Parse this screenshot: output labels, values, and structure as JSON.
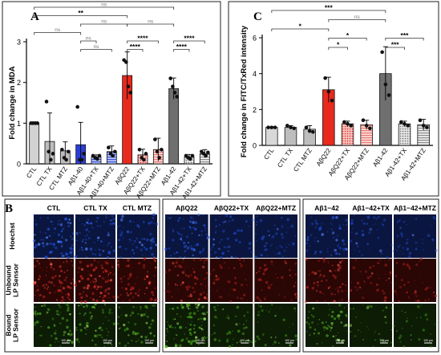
{
  "panels": {
    "A": "A",
    "B": "B",
    "C": "C"
  },
  "chart_data": [
    {
      "type": "bar",
      "panel": "A",
      "ylabel": "Fold change in MDA",
      "ylim": [
        0,
        3
      ],
      "yticks": [
        "0",
        "1",
        "2",
        "3"
      ],
      "categories": [
        "CTL",
        "CTL TX",
        "CTL MTZ",
        "Aβ1-40",
        "Aβ1-40+TX",
        "Aβ1-40+MTZ",
        "AβQ22",
        "AβQ22+TX",
        "AβQ22+MTZ",
        "Aβ1-42",
        "Aβ1-42+TX",
        "Aβ1-42+MTZ"
      ],
      "values": [
        1.0,
        0.55,
        0.32,
        0.47,
        0.17,
        0.3,
        2.17,
        0.22,
        0.35,
        1.85,
        0.17,
        0.25
      ],
      "errors": [
        0.02,
        0.7,
        0.22,
        0.55,
        0.05,
        0.14,
        0.58,
        0.14,
        0.28,
        0.26,
        0.06,
        0.1
      ],
      "colors": [
        "#d2d2d2",
        "#bdbdbd",
        "#bdbdbd",
        "#2b3fd6",
        "#4a5fe0",
        "#6e86e6",
        "#e8291d",
        "#f1a3a0",
        "#f6c0bc",
        "#6f6f6f",
        "#bdbdbd",
        "#d6d6d6"
      ],
      "points": [
        [
          1.0,
          1.0,
          1.0,
          1.0
        ],
        [
          1.53,
          0.3,
          0.1,
          0.25
        ],
        [
          0.35,
          0.15,
          0.1,
          0.3
        ],
        [
          1.4,
          0.1,
          0.1,
          0.25
        ],
        [
          0.2,
          0.15,
          0.12,
          0.2
        ],
        [
          0.4,
          0.25,
          0.2,
          0.3
        ],
        [
          2.55,
          2.5,
          1.9,
          1.75
        ],
        [
          0.35,
          0.15,
          0.1,
          0.25
        ],
        [
          0.6,
          0.3,
          0.15,
          0.35
        ],
        [
          2.1,
          1.9,
          1.75,
          1.65
        ],
        [
          0.2,
          0.15,
          0.12,
          0.2
        ],
        [
          0.3,
          0.25,
          0.2,
          0.28
        ]
      ],
      "significance": [
        {
          "from": 0,
          "to": 9,
          "label": "ns",
          "level": 1
        },
        {
          "from": 0,
          "to": 6,
          "label": "**",
          "level": 2
        },
        {
          "from": 3,
          "to": 6,
          "label": "ns",
          "level": 3
        },
        {
          "from": 6,
          "to": 9,
          "label": "ns",
          "level": 3
        },
        {
          "from": 0,
          "to": 3,
          "label": "ns",
          "level": 4
        },
        {
          "from": 3,
          "to": 4,
          "label": "ns",
          "level": 5
        },
        {
          "from": 3,
          "to": 5,
          "label": "ns",
          "level": 6
        },
        {
          "from": 6,
          "to": 8,
          "label": "****",
          "level": 5
        },
        {
          "from": 6,
          "to": 7,
          "label": "****",
          "level": 6
        },
        {
          "from": 9,
          "to": 11,
          "label": "****",
          "level": 5
        },
        {
          "from": 9,
          "to": 10,
          "label": "****",
          "level": 6
        }
      ]
    },
    {
      "type": "bar",
      "panel": "C",
      "ylabel": "Fold change in FITC/TxRed intensity",
      "ylim": [
        0,
        6
      ],
      "yticks": [
        "0",
        "2",
        "4",
        "6"
      ],
      "categories": [
        "CTL",
        "CTL TX",
        "CTL MTZ",
        "AβQ22",
        "AβQ22+TX",
        "AβQ22+MTZ",
        "Aβ1-42",
        "Aβ1-42+TX",
        "Aβ1-42+MTZ"
      ],
      "values": [
        1.0,
        1.0,
        0.9,
        3.1,
        1.2,
        1.15,
        4.0,
        1.2,
        1.15
      ],
      "errors": [
        0.02,
        0.1,
        0.2,
        0.7,
        0.15,
        0.25,
        1.5,
        0.15,
        0.3
      ],
      "colors": [
        "#d8d8d8",
        "#bdbdbd",
        "#bdbdbd",
        "#e8291d",
        "#f1a3a0",
        "#f6c0bc",
        "#6f6f6f",
        "#cfcfcf",
        "#d6d6d6"
      ],
      "points": [
        [
          1.0,
          1.0,
          1.0
        ],
        [
          1.1,
          1.0,
          0.95
        ],
        [
          1.0,
          0.8,
          0.75
        ],
        [
          3.75,
          3.0,
          2.5
        ],
        [
          1.3,
          1.2,
          1.1
        ],
        [
          1.4,
          1.1,
          0.95
        ],
        [
          5.2,
          3.4,
          2.8
        ],
        [
          1.3,
          1.2,
          1.1
        ],
        [
          1.4,
          1.1,
          1.0
        ]
      ],
      "significance": [
        {
          "from": 0,
          "to": 6,
          "label": "***",
          "level": 1
        },
        {
          "from": 3,
          "to": 6,
          "label": "ns",
          "level": 2
        },
        {
          "from": 0,
          "to": 3,
          "label": "*",
          "level": 3
        },
        {
          "from": 3,
          "to": 5,
          "label": "*",
          "level": 4
        },
        {
          "from": 3,
          "to": 4,
          "label": "*",
          "level": 5
        },
        {
          "from": 6,
          "to": 8,
          "label": "***",
          "level": 4
        },
        {
          "from": 6,
          "to": 7,
          "label": "***",
          "level": 5
        }
      ]
    }
  ],
  "micrographs": {
    "row_labels": [
      "Hoechst",
      "Unbound\nLP Sensor",
      "Bound\nLP Sensor"
    ],
    "groups": [
      {
        "columns": [
          "CTL",
          "CTL TX",
          "CTL MTZ"
        ]
      },
      {
        "columns": [
          "AβQ22",
          "AβQ22+TX",
          "AβQ22+MTZ"
        ]
      },
      {
        "columns": [
          "Aβ1−42",
          "Aβ1−42+TX",
          "Aβ1−42+MTZ"
        ]
      }
    ],
    "scale_label": "100 µm",
    "colors": {
      "hoechst": "#1f4fd8",
      "unbound": "#b8241c",
      "bound": "#4caa1c"
    }
  }
}
